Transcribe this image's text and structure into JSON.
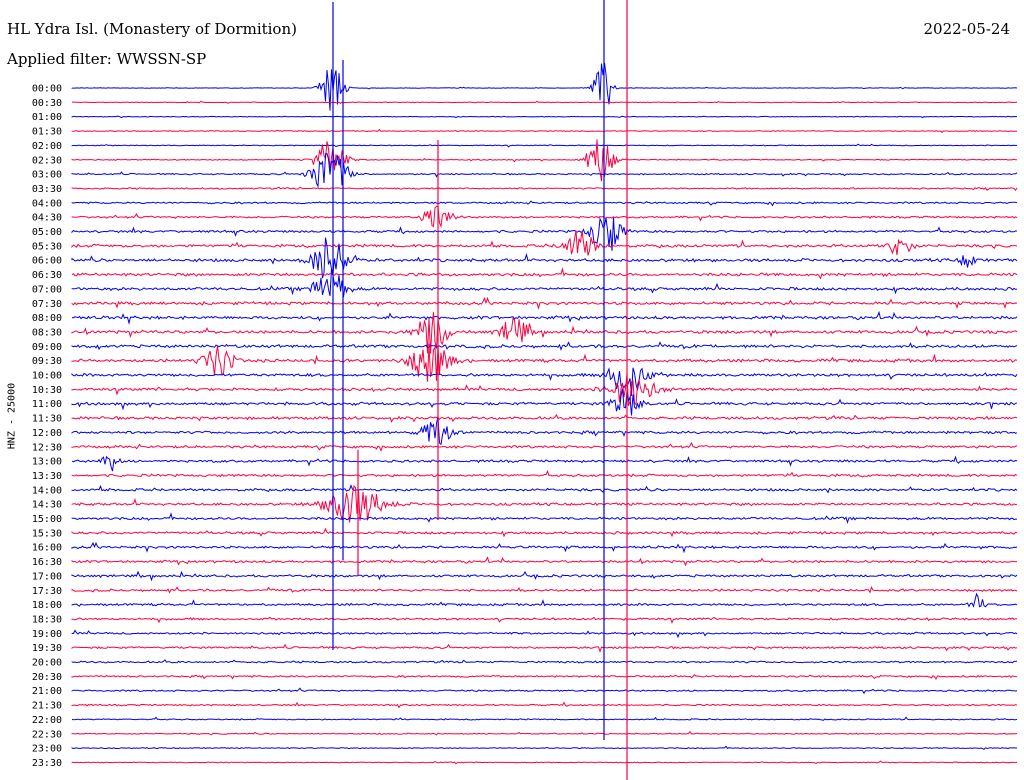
{
  "header": {
    "station": "HL Ydra Isl. (Monastery of Dormition)",
    "date": "2022-05-24",
    "filter": "Applied filter: WWSSN-SP"
  },
  "chart_data": {
    "type": "line",
    "title": "HL Ydra Isl. (Monastery of Dormition)",
    "ylabel": "HNZ - 25000",
    "filter": "WWSSN-SP",
    "date": "2022-05-24",
    "trace_colors": [
      "#0000ee",
      "#ff0040"
    ],
    "tick_labels": [
      "00:00",
      "00:30",
      "01:00",
      "01:30",
      "02:00",
      "02:30",
      "03:00",
      "03:30",
      "04:00",
      "04:30",
      "05:00",
      "05:30",
      "06:00",
      "06:30",
      "07:00",
      "07:30",
      "08:00",
      "08:30",
      "09:00",
      "09:30",
      "10:00",
      "10:30",
      "11:00",
      "11:30",
      "12:00",
      "12:30",
      "13:00",
      "13:30",
      "14:00",
      "14:30",
      "15:00",
      "15:30",
      "16:00",
      "16:30",
      "17:00",
      "17:30",
      "18:00",
      "18:30",
      "19:00",
      "19:30",
      "20:00",
      "20:30",
      "21:00",
      "21:30",
      "22:00",
      "22:30",
      "23:00",
      "23:30"
    ],
    "noise": [
      0.2,
      0.3,
      0.3,
      0.35,
      0.35,
      0.4,
      0.55,
      0.6,
      0.7,
      0.8,
      0.95,
      1.1,
      1.2,
      1.2,
      1.2,
      1.2,
      1.2,
      1.2,
      1.2,
      1.2,
      1.15,
      1.1,
      1.1,
      1.1,
      1.05,
      1.0,
      1.0,
      1.0,
      1.0,
      1.0,
      1.0,
      1.0,
      1.0,
      0.95,
      0.95,
      0.9,
      0.9,
      0.85,
      0.8,
      0.8,
      0.75,
      0.7,
      0.65,
      0.6,
      0.5,
      0.45,
      0.4,
      0.35
    ],
    "events": [
      {
        "row": 0,
        "x": 333,
        "amp": 30,
        "width": 10
      },
      {
        "row": 5,
        "x": 330,
        "amp": 22,
        "width": 14
      },
      {
        "row": 6,
        "x": 330,
        "amp": 26,
        "width": 16
      },
      {
        "row": 12,
        "x": 330,
        "amp": 24,
        "width": 16
      },
      {
        "row": 14,
        "x": 330,
        "amp": 20,
        "width": 14
      },
      {
        "row": 9,
        "x": 438,
        "amp": 16,
        "width": 12
      },
      {
        "row": 17,
        "x": 432,
        "amp": 22,
        "width": 14
      },
      {
        "row": 19,
        "x": 430,
        "amp": 22,
        "width": 18
      },
      {
        "row": 24,
        "x": 436,
        "amp": 18,
        "width": 12
      },
      {
        "row": 29,
        "x": 355,
        "amp": 20,
        "width": 26
      },
      {
        "row": 19,
        "x": 218,
        "amp": 16,
        "width": 14
      },
      {
        "row": 17,
        "x": 515,
        "amp": 16,
        "width": 12
      },
      {
        "row": 0,
        "x": 603,
        "amp": 30,
        "width": 8
      },
      {
        "row": 5,
        "x": 600,
        "amp": 24,
        "width": 12
      },
      {
        "row": 10,
        "x": 606,
        "amp": 22,
        "width": 14
      },
      {
        "row": 11,
        "x": 580,
        "amp": 16,
        "width": 14
      },
      {
        "row": 20,
        "x": 628,
        "amp": 22,
        "width": 16
      },
      {
        "row": 21,
        "x": 632,
        "amp": 18,
        "width": 20
      },
      {
        "row": 22,
        "x": 626,
        "amp": 16,
        "width": 12
      },
      {
        "row": 26,
        "x": 110,
        "amp": 10,
        "width": 8
      },
      {
        "row": 36,
        "x": 978,
        "amp": 12,
        "width": 6
      },
      {
        "row": 11,
        "x": 900,
        "amp": 12,
        "width": 10
      },
      {
        "row": 12,
        "x": 968,
        "amp": 10,
        "width": 6
      }
    ],
    "spikes": [
      {
        "x": 333,
        "y1": 2,
        "y2": 650,
        "color": "#0000ee"
      },
      {
        "x": 343,
        "y1": 60,
        "y2": 560,
        "color": "#0000ee"
      },
      {
        "x": 604,
        "y1": 0,
        "y2": 740,
        "color": "#0000ee"
      },
      {
        "x": 627,
        "y1": 0,
        "y2": 780,
        "color": "#ff0040"
      },
      {
        "x": 438,
        "y1": 140,
        "y2": 520,
        "color": "#ff0040"
      },
      {
        "x": 358,
        "y1": 450,
        "y2": 575,
        "color": "#ff0040"
      }
    ]
  }
}
